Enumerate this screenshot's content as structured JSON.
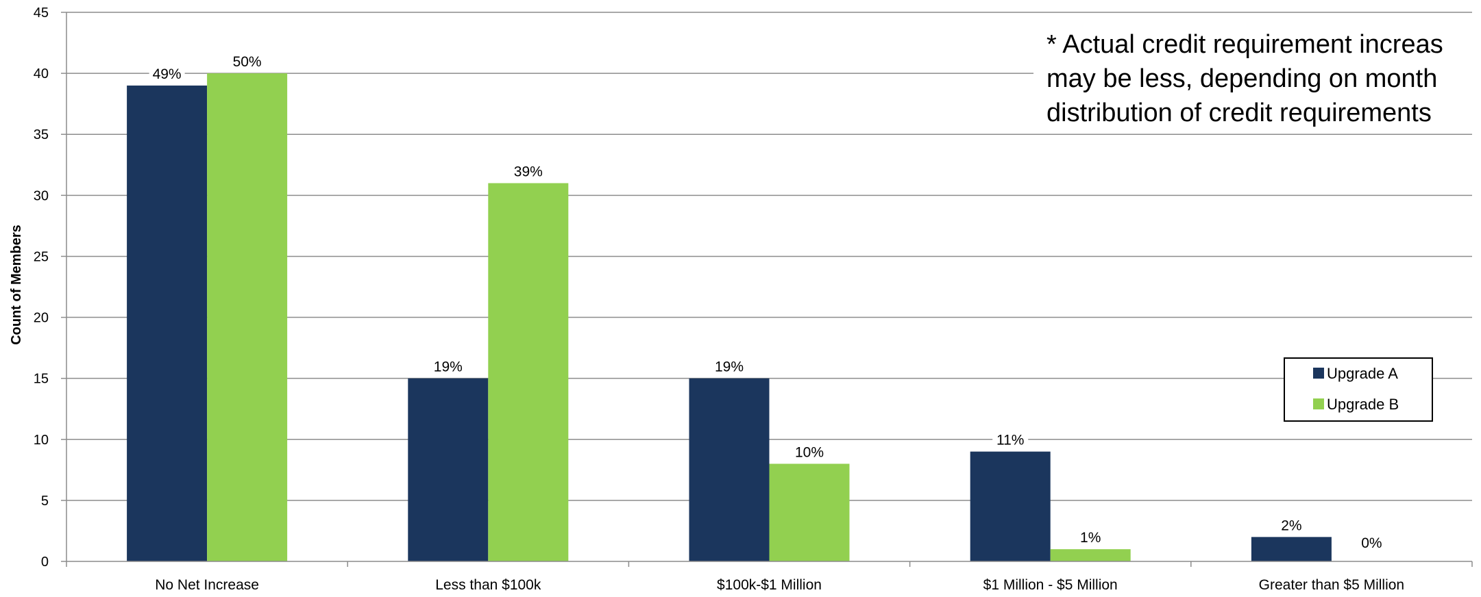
{
  "chart_data": {
    "type": "bar",
    "categories": [
      "No Net Increase",
      "Less than $100k",
      "$100k-$1 Million",
      "$1 Million - $5 Million",
      "Greater than $5 Million"
    ],
    "series": [
      {
        "name": "Upgrade A",
        "color": "#1b365d",
        "values": [
          39,
          15,
          15,
          9,
          2
        ],
        "labels": [
          "49%",
          "19%",
          "19%",
          "11%",
          "2%"
        ]
      },
      {
        "name": "Upgrade B",
        "color": "#92d050",
        "values": [
          40,
          31,
          8,
          1,
          0
        ],
        "labels": [
          "50%",
          "39%",
          "10%",
          "1%",
          "0%"
        ]
      }
    ],
    "ylabel": "Count of Members",
    "xlabel": "",
    "ylim": [
      0,
      45
    ],
    "yticks": [
      0,
      5,
      10,
      15,
      20,
      25,
      30,
      35,
      40,
      45
    ],
    "grid": true,
    "legend_position": "right",
    "annotation": [
      "* Actual credit requirement increas",
      "may be less, depending on month",
      "distribution of credit requirements"
    ]
  }
}
